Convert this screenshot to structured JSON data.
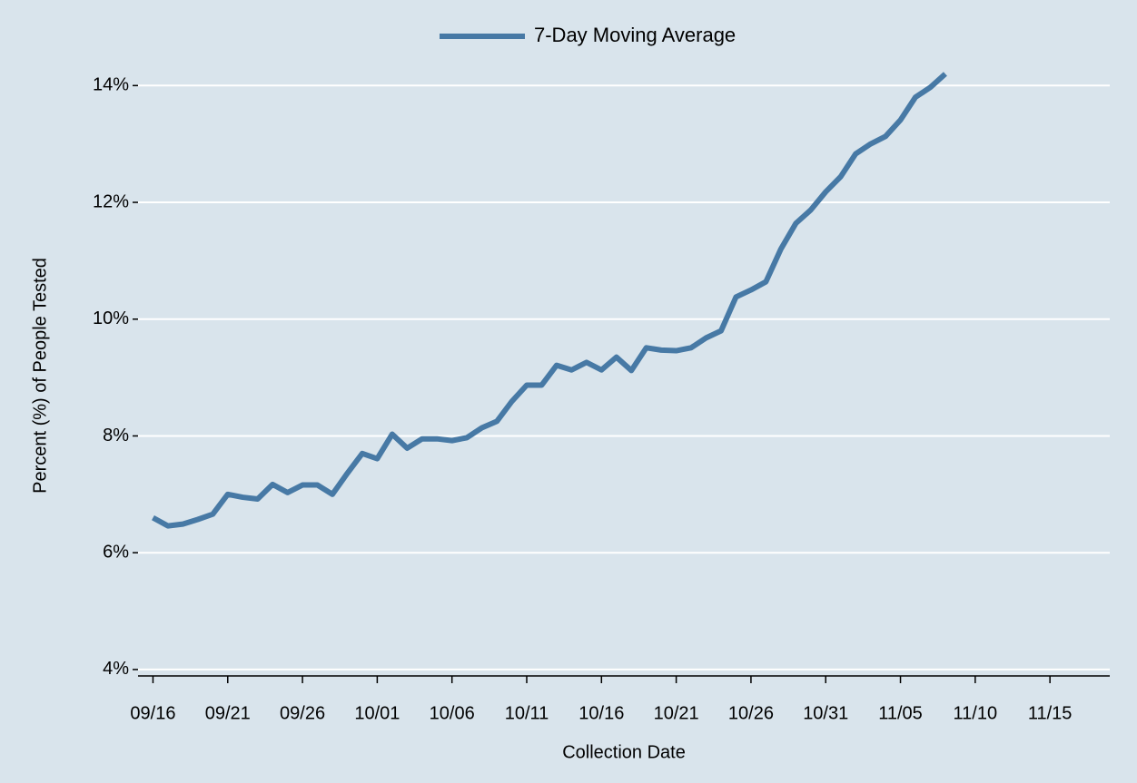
{
  "chart_data": {
    "type": "line",
    "xlabel": "Collection Date",
    "ylabel": "Percent (%) of People Tested",
    "x": [
      "09/16",
      "09/17",
      "09/18",
      "09/19",
      "09/20",
      "09/21",
      "09/22",
      "09/23",
      "09/24",
      "09/25",
      "09/26",
      "09/27",
      "09/28",
      "09/29",
      "09/30",
      "10/01",
      "10/02",
      "10/03",
      "10/04",
      "10/05",
      "10/06",
      "10/07",
      "10/08",
      "10/09",
      "10/10",
      "10/11",
      "10/12",
      "10/13",
      "10/14",
      "10/15",
      "10/16",
      "10/17",
      "10/18",
      "10/19",
      "10/20",
      "10/21",
      "10/22",
      "10/23",
      "10/24",
      "10/25",
      "10/26",
      "10/27",
      "10/28",
      "10/29",
      "10/30",
      "10/31",
      "11/01",
      "11/02",
      "11/03",
      "11/04",
      "11/05",
      "11/06",
      "11/07",
      "11/08"
    ],
    "series": [
      {
        "name": "7-Day Moving Average",
        "color": "#4779a5",
        "values": [
          6.6,
          6.46,
          6.49,
          6.57,
          6.66,
          7.0,
          6.95,
          6.92,
          7.17,
          7.03,
          7.16,
          7.16,
          7.0,
          7.36,
          7.7,
          7.61,
          8.03,
          7.79,
          7.95,
          7.95,
          7.92,
          7.97,
          8.14,
          8.25,
          8.59,
          8.87,
          8.87,
          9.21,
          9.13,
          9.26,
          9.13,
          9.35,
          9.12,
          9.51,
          9.47,
          9.46,
          9.51,
          9.68,
          9.8,
          10.38,
          10.5,
          10.64,
          11.2,
          11.64,
          11.87,
          12.18,
          12.44,
          12.83,
          13.0,
          13.13,
          13.41,
          13.8,
          13.97,
          14.2
        ]
      }
    ],
    "xlim": [
      "09/15",
      "11/19"
    ],
    "xticks": [
      "09/16",
      "09/21",
      "09/26",
      "10/01",
      "10/06",
      "10/11",
      "10/16",
      "10/21",
      "10/26",
      "10/31",
      "11/05",
      "11/10",
      "11/15"
    ],
    "ylim": [
      3.89,
      14.3
    ],
    "yticks": [
      {
        "value": 4,
        "label": "4%"
      },
      {
        "value": 6,
        "label": "6%"
      },
      {
        "value": 8,
        "label": "8%"
      },
      {
        "value": 10,
        "label": "10%"
      },
      {
        "value": 12,
        "label": "12%"
      },
      {
        "value": 14,
        "label": "14%"
      }
    ],
    "grid": true,
    "legend": "top"
  }
}
